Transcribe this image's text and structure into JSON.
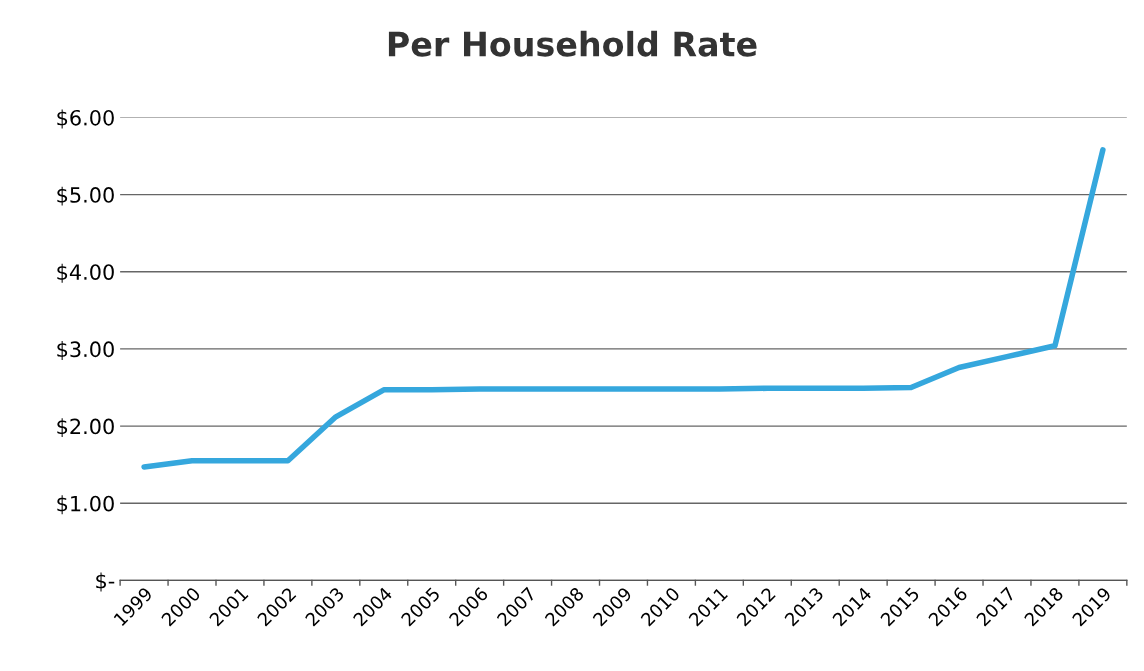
{
  "chart_data": {
    "type": "line",
    "title": "Per Household Rate",
    "categories": [
      "1999",
      "2000",
      "2001",
      "2002",
      "2003",
      "2004",
      "2005",
      "2006",
      "2007",
      "2008",
      "2009",
      "2010",
      "2011",
      "2012",
      "2013",
      "2014",
      "2015",
      "2016",
      "2017",
      "2018",
      "2019"
    ],
    "series": [
      {
        "color": "#35a7dd",
        "values": [
          1.47,
          1.55,
          1.55,
          1.55,
          2.12,
          2.47,
          2.47,
          2.48,
          2.48,
          2.48,
          2.48,
          2.48,
          2.48,
          2.49,
          2.49,
          2.49,
          2.5,
          2.76,
          2.9,
          3.04,
          5.58
        ]
      }
    ],
    "ylim": [
      0,
      6
    ],
    "yticks": [
      {
        "value": 0,
        "label": "$-"
      },
      {
        "value": 1,
        "label": "$1.00"
      },
      {
        "value": 2,
        "label": "$2.00"
      },
      {
        "value": 3,
        "label": "$3.00"
      },
      {
        "value": 4,
        "label": "$4.00"
      },
      {
        "value": 5,
        "label": "$5.00"
      },
      {
        "value": 6,
        "label": "$6.00"
      }
    ],
    "grid": "y",
    "marker": "none",
    "line_style": "solid",
    "legend": false
  }
}
